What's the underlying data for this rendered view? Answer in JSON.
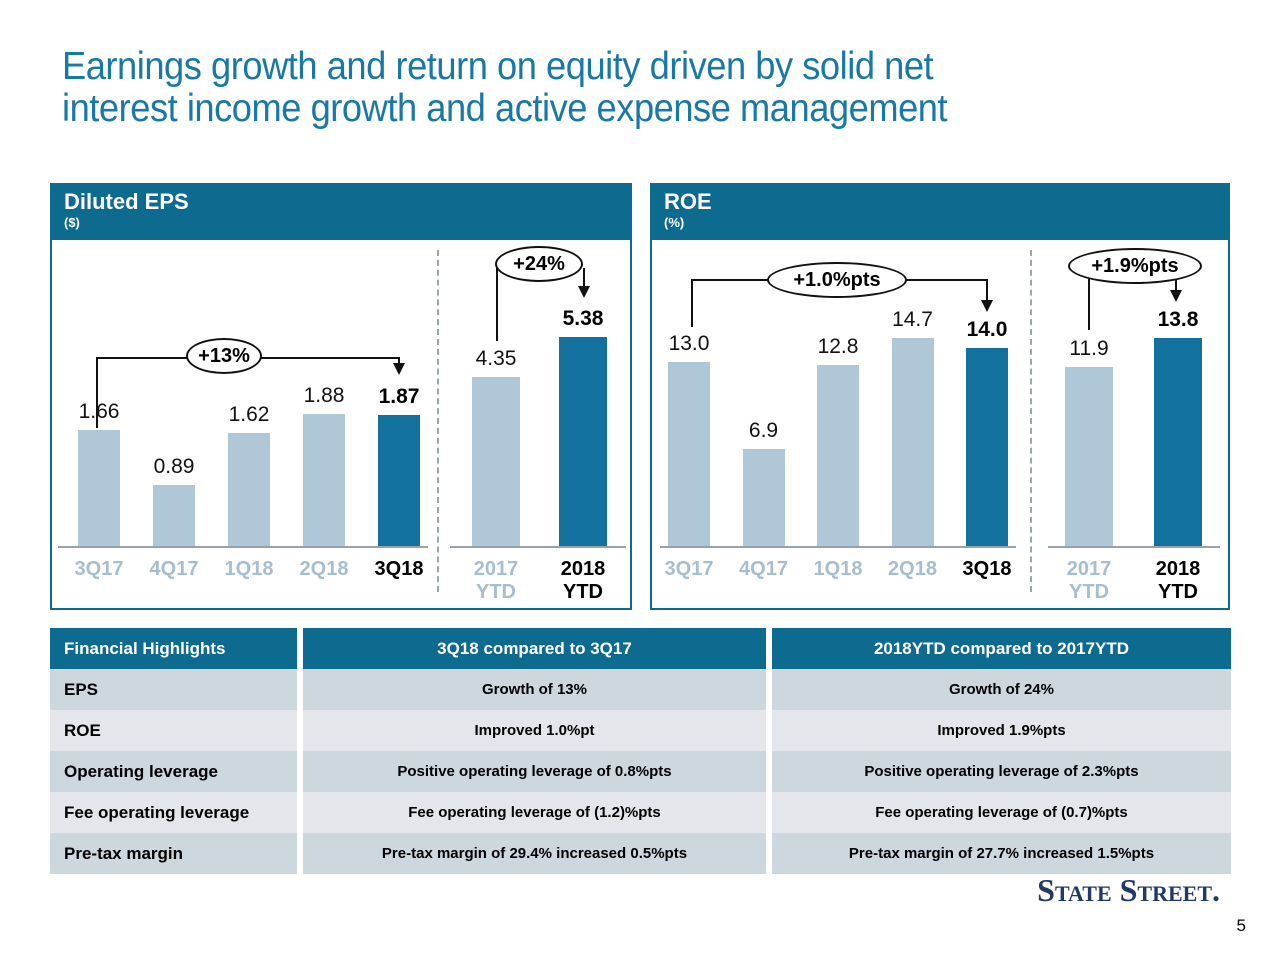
{
  "slide": {
    "title_line1": "Earnings growth and return on equity driven by solid net",
    "title_line2": "interest income growth and active expense management",
    "logo": "State Street.",
    "page_number": "5"
  },
  "colors": {
    "title_teal": "#1879A6",
    "band_teal": "#0C6B8E",
    "bar_light": "#AFC7D6",
    "bar_dark": "#12729D",
    "axis_label_light": "#A6BFD0",
    "table_row_dark": "#CDD7DE",
    "table_row_light": "#E3E7EB",
    "logo_navy": "#203A66"
  },
  "chart_data": [
    {
      "type": "bar",
      "title": "Diluted EPS",
      "unit": "($)",
      "groups": [
        {
          "name": "quarterly",
          "categories": [
            "3Q17",
            "4Q17",
            "1Q18",
            "2Q18",
            "3Q18"
          ],
          "values": [
            1.66,
            0.89,
            1.62,
            1.88,
            1.87
          ],
          "labels": [
            "1.66",
            "0.89",
            "1.62",
            "1.88",
            "1.87"
          ],
          "highlight_index": 4,
          "scale_max": 4.25
        },
        {
          "name": "ytd",
          "categories": [
            "2017 YTD",
            "2018 YTD"
          ],
          "values": [
            4.35,
            5.38
          ],
          "labels": [
            "4.35",
            "5.38"
          ],
          "highlight_index": 1,
          "scale_max": 7.7
        }
      ],
      "annotations": [
        {
          "label": "+13%",
          "from": "3Q17",
          "to": "3Q18"
        },
        {
          "label": "+24%",
          "from": "2017 YTD",
          "to": "2018 YTD"
        }
      ]
    },
    {
      "type": "bar",
      "title": "ROE",
      "unit": "(%)",
      "groups": [
        {
          "name": "quarterly",
          "categories": [
            "3Q17",
            "4Q17",
            "1Q18",
            "2Q18",
            "3Q18"
          ],
          "values": [
            13.0,
            6.9,
            12.8,
            14.7,
            14.0
          ],
          "labels": [
            "13.0",
            "6.9",
            "12.8",
            "14.7",
            "14.0"
          ],
          "highlight_index": 4,
          "scale_max": 21.1
        },
        {
          "name": "ytd",
          "categories": [
            "2017 YTD",
            "2018 YTD"
          ],
          "values": [
            11.9,
            13.8
          ],
          "labels": [
            "11.9",
            "13.8"
          ],
          "highlight_index": 1,
          "scale_max": 19.85
        }
      ],
      "annotations": [
        {
          "label": "+1.0%pts",
          "from": "3Q17",
          "to": "3Q18"
        },
        {
          "label": "+1.9%pts",
          "from": "2017 YTD",
          "to": "2018 YTD"
        }
      ]
    }
  ],
  "table": {
    "headers": [
      "Financial Highlights",
      "3Q18 compared to 3Q17",
      "2018YTD compared to 2017YTD"
    ],
    "rows": [
      [
        "EPS",
        "Growth of 13%",
        "Growth of 24%"
      ],
      [
        "ROE",
        "Improved 1.0%pt",
        "Improved 1.9%pts"
      ],
      [
        "Operating leverage",
        "Positive operating leverage of 0.8%pts",
        "Positive operating leverage of 2.3%pts"
      ],
      [
        "Fee operating leverage",
        "Fee operating leverage of (1.2)%pts",
        "Fee operating leverage of (0.7)%pts"
      ],
      [
        "Pre-tax margin",
        "Pre-tax margin of 29.4% increased 0.5%pts",
        "Pre-tax margin of 27.7% increased 1.5%pts"
      ]
    ]
  }
}
